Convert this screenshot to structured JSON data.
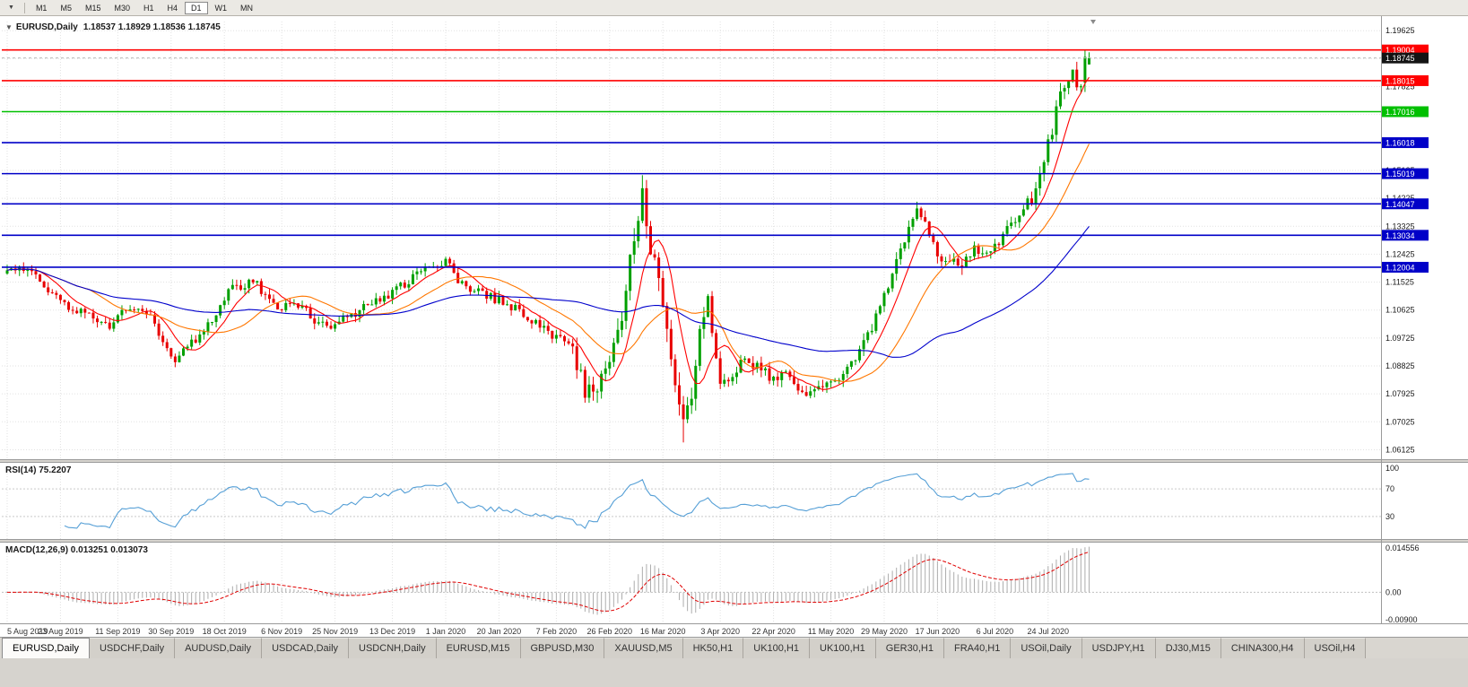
{
  "toolbar": {
    "chart_menu_icon": "▼",
    "timeframes": [
      {
        "label": "M1"
      },
      {
        "label": "M5"
      },
      {
        "label": "M15"
      },
      {
        "label": "M30"
      },
      {
        "label": "H1"
      },
      {
        "label": "H4"
      },
      {
        "label": "D1"
      },
      {
        "label": "W1"
      },
      {
        "label": "MN"
      }
    ],
    "active_timeframe": "D1"
  },
  "chart": {
    "collapse_icon": "▼",
    "symbol": "EURUSD,Daily",
    "ohlc_text": "1.18537 1.18929 1.18536 1.18745",
    "current_price_label": "1.18745",
    "colors": {
      "up": "#00A000",
      "down": "#E80000",
      "grid": "#E2E2E2",
      "axis_line": "#9A9A9A",
      "axis_text": "#1A1A1A",
      "bid_line": "#B8B8B8",
      "current_tag_bg": "#141414",
      "ma_fast": "#FF0000",
      "ma_mid": "#FF7700",
      "ma_slow": "#0000CC",
      "rsi_line": "#559FD6",
      "macd_bar": "#ADADAD",
      "macd_signal": "#E00000"
    },
    "y_axis": {
      "min": 1.0582,
      "max": 1.1992,
      "ticks": [
        1.06125,
        1.07025,
        1.07925,
        1.08825,
        1.09725,
        1.10625,
        1.11525,
        1.12425,
        1.13325,
        1.14225,
        1.15125,
        1.16025,
        1.16925,
        1.17825,
        1.18725,
        1.19625
      ]
    },
    "hlines": [
      {
        "price": 1.19004,
        "label": "1.19004",
        "color": "#FF0000"
      },
      {
        "price": 1.18015,
        "label": "1.18015",
        "color": "#FF0000"
      },
      {
        "price": 1.17016,
        "label": "1.17016",
        "color": "#00C000"
      },
      {
        "price": 1.16018,
        "label": "1.16018",
        "color": "#0000C8"
      },
      {
        "price": 1.15019,
        "label": "1.15019",
        "color": "#0000C8"
      },
      {
        "price": 1.14047,
        "label": "1.14047",
        "color": "#0000C8"
      },
      {
        "price": 1.13034,
        "label": "1.13034",
        "color": "#0000C8"
      },
      {
        "price": 1.12004,
        "label": "1.12004",
        "color": "#0000C8"
      }
    ]
  },
  "rsi": {
    "label": "RSI(14) 75.2207",
    "levels": [
      {
        "value": 100,
        "text": "100"
      },
      {
        "value": 70,
        "text": "70"
      },
      {
        "value": 30,
        "text": "30"
      }
    ]
  },
  "macd": {
    "label": "MACD(12,26,9) 0.013251 0.013073",
    "axis_labels": [
      {
        "value": 0.014556,
        "text": "0.014556"
      },
      {
        "value": 0,
        "text": "0.00"
      },
      {
        "value": -0.009,
        "text": "-0.00900"
      }
    ]
  },
  "x_axis": {
    "labels": [
      "5 Aug 2019",
      "23 Aug 2019",
      "11 Sep 2019",
      "30 Sep 2019",
      "18 Oct 2019",
      "6 Nov 2019",
      "25 Nov 2019",
      "13 Dec 2019",
      "1 Jan 2020",
      "20 Jan 2020",
      "7 Feb 2020",
      "26 Feb 2020",
      "16 Mar 2020",
      "3 Apr 2020",
      "22 Apr 2020",
      "11 May 2020",
      "29 May 2020",
      "17 Jun 2020",
      "6 Jul 2020",
      "24 Jul 2020"
    ]
  },
  "tabs": {
    "active": 0,
    "items": [
      "EURUSD,Daily",
      "USDCHF,Daily",
      "AUDUSD,Daily",
      "USDCAD,Daily",
      "USDCNH,Daily",
      "EURUSD,M15",
      "GBPUSD,M30",
      "XAUUSD,M5",
      "HK50,H1",
      "UK100,H1",
      "UK100,H1",
      "GER30,H1",
      "FRA40,H1",
      "USOil,Daily",
      "USDJPY,H1",
      "DJ30,M15",
      "CHINA300,H4",
      "USOil,H4"
    ]
  },
  "chart_data": {
    "type": "candlestick",
    "title": "EURUSD Daily with RSI(14) and MACD(12,26,9)",
    "ylim": [
      1.0582,
      1.1992
    ],
    "num_candles": 265,
    "last_candle": {
      "open": 1.18537,
      "high": 1.18929,
      "low": 1.18536,
      "close": 1.18745
    },
    "swing_high": {
      "index": 155,
      "price": 1.1497
    },
    "swing_low": {
      "index": 165,
      "price": 1.0636
    },
    "recent_high": {
      "index": 263,
      "price": 1.19004
    },
    "close_path_anchors": [
      [
        0,
        1.118
      ],
      [
        3,
        1.121
      ],
      [
        9,
        1.1145
      ],
      [
        14,
        1.108
      ],
      [
        20,
        1.104
      ],
      [
        25,
        1.1015
      ],
      [
        30,
        1.107
      ],
      [
        34,
        1.106
      ],
      [
        38,
        1.096
      ],
      [
        41,
        1.09
      ],
      [
        44,
        1.095
      ],
      [
        48,
        1.0985
      ],
      [
        54,
        1.113
      ],
      [
        60,
        1.1155
      ],
      [
        66,
        1.1075
      ],
      [
        72,
        1.107
      ],
      [
        76,
        1.101
      ],
      [
        80,
        1.1015
      ],
      [
        86,
        1.106
      ],
      [
        94,
        1.112
      ],
      [
        100,
        1.1175
      ],
      [
        107,
        1.1225
      ],
      [
        110,
        1.116
      ],
      [
        116,
        1.111
      ],
      [
        120,
        1.1095
      ],
      [
        125,
        1.106
      ],
      [
        130,
        1.1005
      ],
      [
        134,
        1.0975
      ],
      [
        138,
        1.0935
      ],
      [
        141,
        1.0795
      ],
      [
        144,
        1.082
      ],
      [
        147,
        1.0885
      ],
      [
        150,
        1.1035
      ],
      [
        153,
        1.1305
      ],
      [
        155,
        1.144
      ],
      [
        157,
        1.1275
      ],
      [
        159,
        1.117
      ],
      [
        161,
        1.1
      ],
      [
        163,
        1.079
      ],
      [
        165,
        1.07
      ],
      [
        167,
        1.079
      ],
      [
        169,
        1.101
      ],
      [
        171,
        1.109
      ],
      [
        174,
        1.083
      ],
      [
        177,
        1.0855
      ],
      [
        180,
        1.0905
      ],
      [
        184,
        1.087
      ],
      [
        187,
        1.083
      ],
      [
        190,
        1.0875
      ],
      [
        193,
        1.082
      ],
      [
        196,
        1.0785
      ],
      [
        199,
        1.081
      ],
      [
        203,
        1.083
      ],
      [
        207,
        1.0905
      ],
      [
        210,
        1.0975
      ],
      [
        214,
        1.11
      ],
      [
        218,
        1.125
      ],
      [
        222,
        1.139
      ],
      [
        224,
        1.1345
      ],
      [
        227,
        1.1245
      ],
      [
        230,
        1.1215
      ],
      [
        233,
        1.1205
      ],
      [
        236,
        1.1255
      ],
      [
        239,
        1.1245
      ],
      [
        242,
        1.1285
      ],
      [
        245,
        1.133
      ],
      [
        248,
        1.1395
      ],
      [
        251,
        1.144
      ],
      [
        253,
        1.155
      ],
      [
        255,
        1.165
      ],
      [
        257,
        1.1745
      ],
      [
        259,
        1.178
      ],
      [
        260,
        1.184
      ],
      [
        261,
        1.1785
      ],
      [
        262,
        1.1795
      ],
      [
        263,
        1.1885
      ],
      [
        264,
        1.18745
      ]
    ],
    "volatility_segments": [
      {
        "from": 0,
        "to": 138,
        "amp": 0.0042
      },
      {
        "from": 138,
        "to": 172,
        "amp": 0.01
      },
      {
        "from": 172,
        "to": 250,
        "amp": 0.0052
      },
      {
        "from": 250,
        "to": 265,
        "amp": 0.0068
      }
    ],
    "moving_averages": [
      {
        "period": 8,
        "color_key": "ma_fast"
      },
      {
        "period": 21,
        "color_key": "ma_mid"
      },
      {
        "period": 60,
        "color_key": "ma_slow"
      }
    ],
    "indicators": [
      {
        "name": "RSI",
        "params": [
          14
        ],
        "current": 75.2207,
        "levels": [
          100,
          70,
          30
        ]
      },
      {
        "name": "MACD",
        "params": [
          12,
          26,
          9
        ],
        "current": [
          0.013251,
          0.013073
        ],
        "axis_range": [
          0.014556,
          -0.009
        ]
      }
    ],
    "horizontal_levels": [
      1.19004,
      1.18015,
      1.17016,
      1.16018,
      1.15019,
      1.14047,
      1.13034,
      1.12004
    ]
  }
}
